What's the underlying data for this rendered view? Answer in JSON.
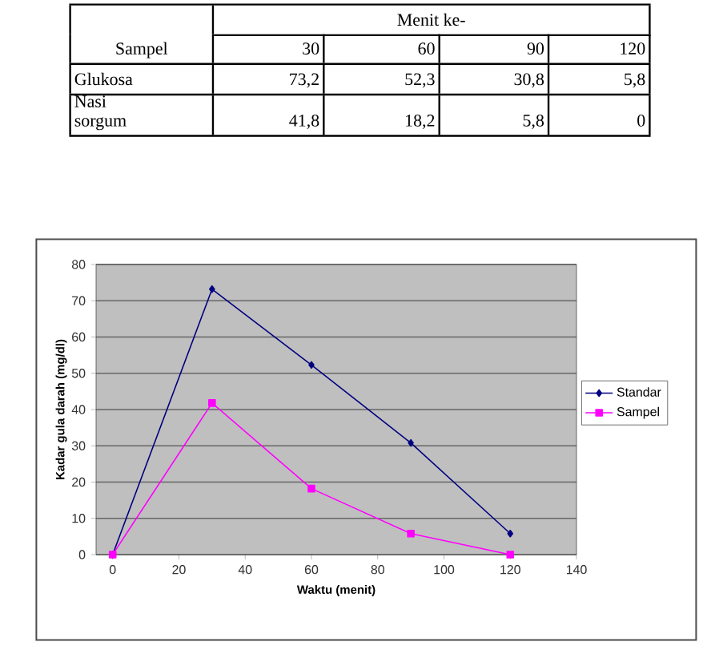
{
  "chart_data": {
    "type": "line",
    "xlabel": "Waktu (menit)",
    "ylabel": "Kadar  gula darah  (mg/dl)",
    "x": [
      0,
      30,
      60,
      90,
      120
    ],
    "xlim": [
      -5,
      140
    ],
    "xticks": [
      0,
      20,
      40,
      60,
      80,
      100,
      120,
      140
    ],
    "ylim": [
      0,
      80
    ],
    "yticks": [
      0,
      10,
      20,
      30,
      40,
      50,
      60,
      70,
      80
    ],
    "grid": "y",
    "legend": "right",
    "line_style": "solid",
    "series": [
      {
        "name": "Standar",
        "color": "#000080",
        "marker": "diamond",
        "values": [
          0,
          73.2,
          52.3,
          30.8,
          5.8
        ]
      },
      {
        "name": "Sampel",
        "color": "#ff00ff",
        "marker": "square",
        "values": [
          0,
          41.8,
          18.2,
          5.8,
          0
        ]
      }
    ],
    "annotations": [
      "Sampel",
      "Menit ke-",
      "30",
      "60",
      "90",
      "120",
      "Glukosa",
      "Nasi sorgum",
      "73,2",
      "52,3",
      "30,8",
      "5,8",
      "41,8",
      "18,2",
      "5,8",
      "0"
    ]
  }
}
